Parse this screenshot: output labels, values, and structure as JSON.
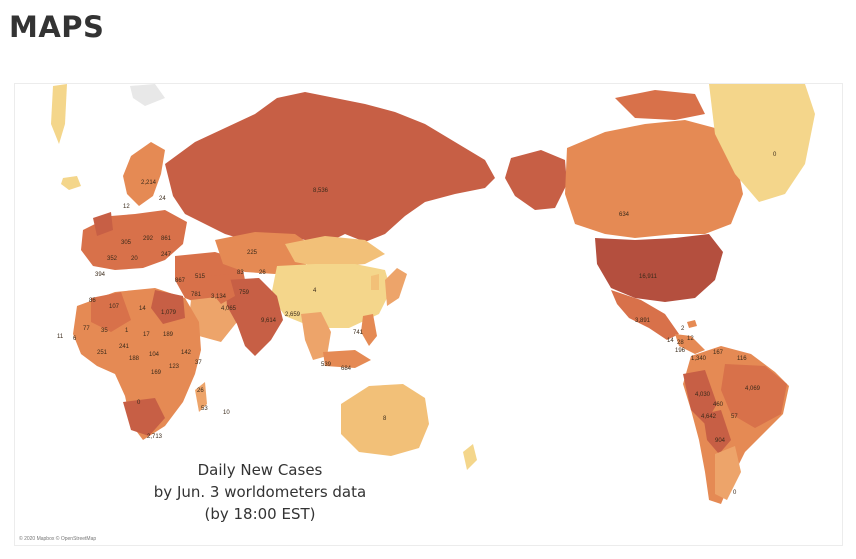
{
  "page": {
    "heading": "MAPS"
  },
  "map": {
    "caption": [
      "Daily New Cases",
      "by Jun. 3 worldometers data",
      "(by 18:00 EST)"
    ],
    "attribution": "© 2020 Mapbox © OpenStreetMap",
    "colors": {
      "very_light": "#f4d68b",
      "light": "#f2c078",
      "mid_light": "#eda46a",
      "mid": "#e58a54",
      "mid_dark": "#d8714a",
      "dark": "#c75f45",
      "darkest": "#b44f3e",
      "water": "#ffffff",
      "antarctic": "#e8e8e8"
    },
    "labels": [
      "8,536",
      "634",
      "16,911",
      "0",
      "4",
      "225",
      "2,214",
      "24",
      "12",
      "305",
      "292",
      "861",
      "247",
      "394",
      "352",
      "20",
      "83",
      "26",
      "867",
      "515",
      "781",
      "3,134",
      "759",
      "4,065",
      "9,614",
      "2,659",
      "741",
      "107",
      "86",
      "1,079",
      "14",
      "189",
      "142",
      "37",
      "241",
      "104",
      "17",
      "77",
      "35",
      "1",
      "11",
      "6",
      "251",
      "188",
      "123",
      "169",
      "26",
      "53",
      "10",
      "0",
      "2,713",
      "8",
      "539",
      "684",
      "3,891",
      "1,340",
      "167",
      "116",
      "4,030",
      "460",
      "4,642",
      "57",
      "904",
      "4,069",
      "0",
      "2",
      "12",
      "14",
      "196",
      "28"
    ]
  }
}
